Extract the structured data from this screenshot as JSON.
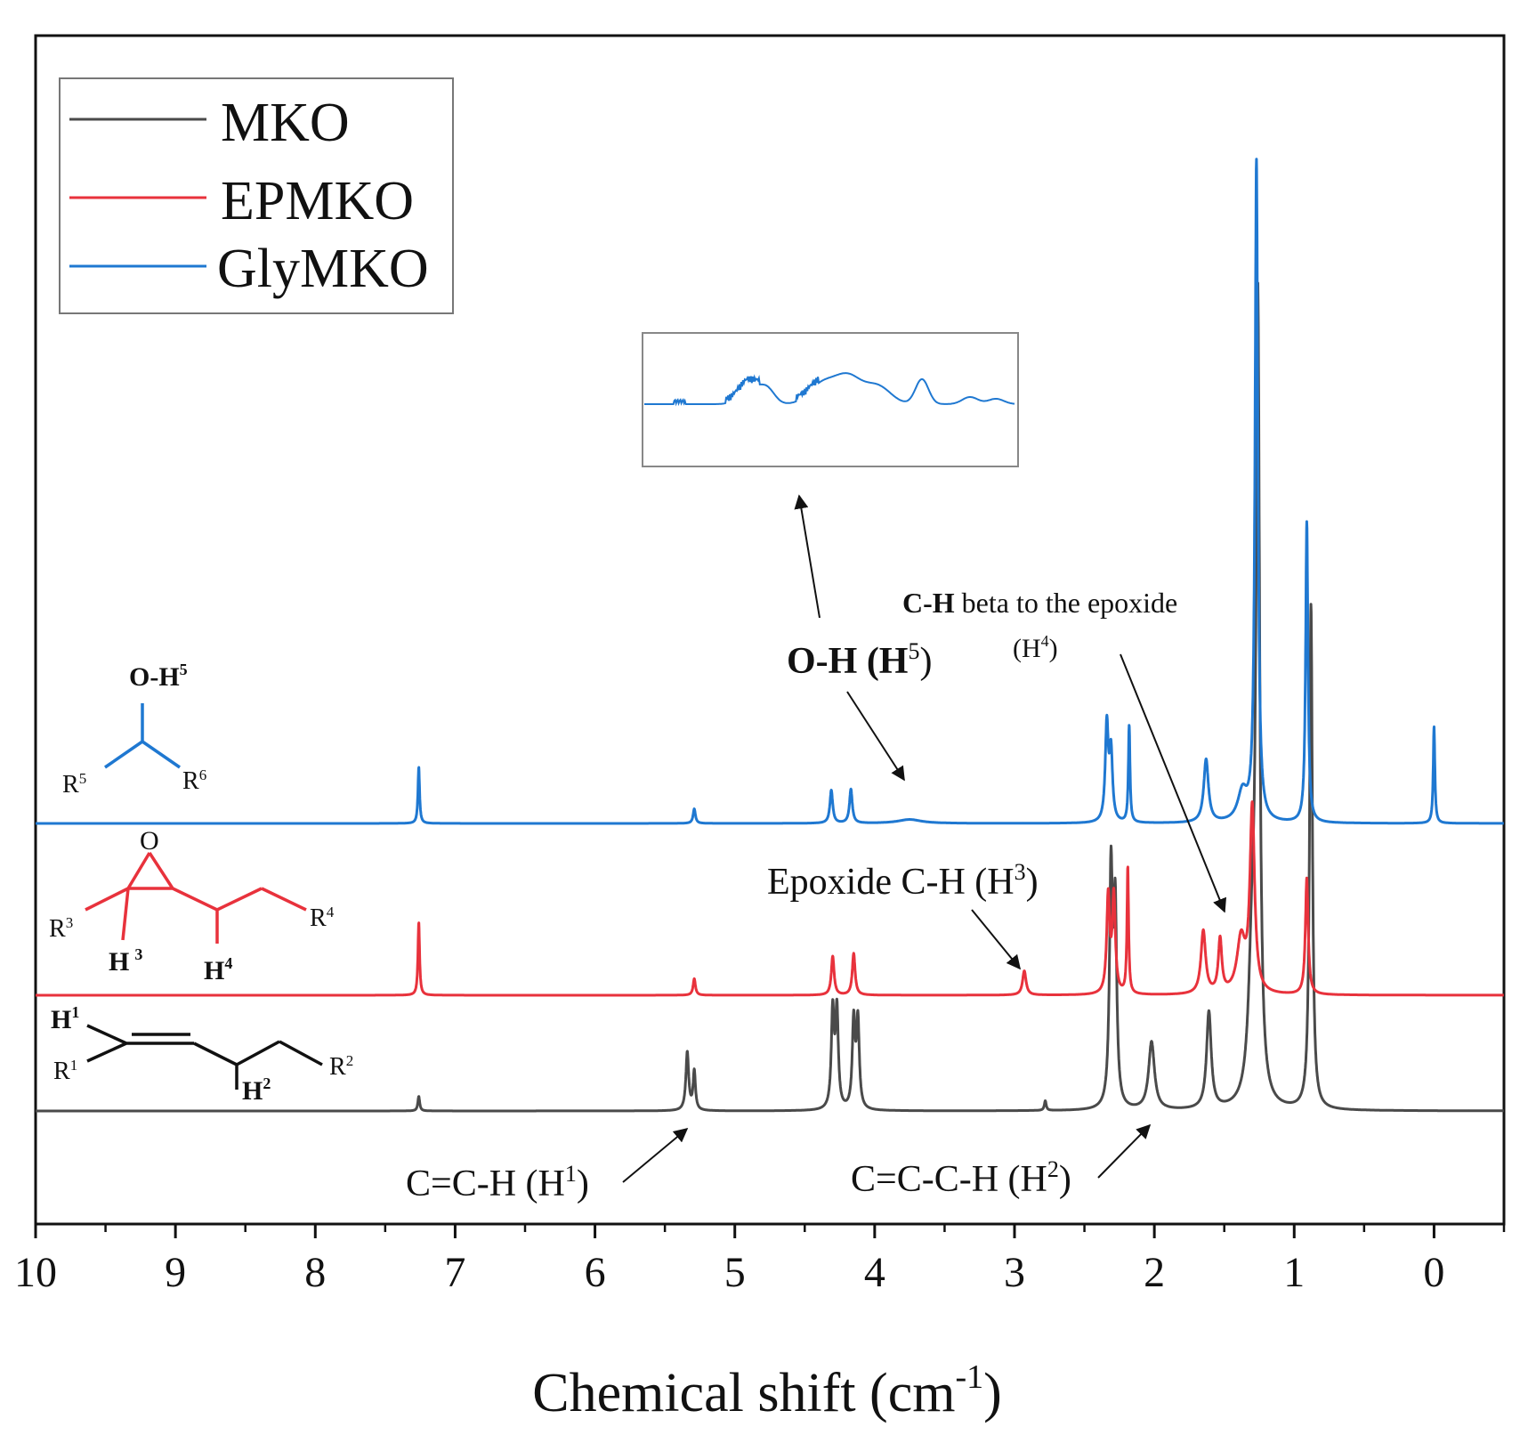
{
  "chart_data": {
    "type": "line",
    "title": "",
    "xlabel": "Chemical shift (cm",
    "xlabel_sup": "-1",
    "xlabel_close": ")",
    "ylabel": "",
    "xlim": [
      10,
      -0.5
    ],
    "x_ticks": [
      "10",
      "9",
      "8",
      "7",
      "6",
      "5",
      "4",
      "3",
      "2",
      "1",
      "0"
    ],
    "x_tick_values": [
      10,
      9,
      8,
      7,
      6,
      5,
      4,
      3,
      2,
      1,
      0
    ],
    "legend": [
      {
        "name": "MKO",
        "color": "#4a4a4a"
      },
      {
        "name": "EPMKO",
        "color": "#e8323c"
      },
      {
        "name": "GlyMKO",
        "color": "#1f78d1"
      }
    ],
    "legend_position": "top-left",
    "series": [
      {
        "name": "MKO",
        "color": "#4a4a4a",
        "peaks": [
          {
            "x": 7.26,
            "h": 0.015,
            "w": 0.008
          },
          {
            "x": 5.34,
            "h": 0.06,
            "w": 0.012
          },
          {
            "x": 5.29,
            "h": 0.04,
            "w": 0.01
          },
          {
            "x": 4.3,
            "h": 0.1,
            "w": 0.012
          },
          {
            "x": 4.27,
            "h": 0.1,
            "w": 0.012
          },
          {
            "x": 4.15,
            "h": 0.09,
            "w": 0.012
          },
          {
            "x": 4.12,
            "h": 0.09,
            "w": 0.012
          },
          {
            "x": 2.78,
            "h": 0.01,
            "w": 0.008
          },
          {
            "x": 2.31,
            "h": 0.24,
            "w": 0.013
          },
          {
            "x": 2.28,
            "h": 0.2,
            "w": 0.013
          },
          {
            "x": 2.02,
            "h": 0.07,
            "w": 0.025
          },
          {
            "x": 1.61,
            "h": 0.1,
            "w": 0.02
          },
          {
            "x": 1.3,
            "h": 0.15,
            "w": 0.03
          },
          {
            "x": 1.26,
            "h": 0.8,
            "w": 0.015
          },
          {
            "x": 0.88,
            "h": 0.52,
            "w": 0.012
          }
        ]
      },
      {
        "name": "EPMKO",
        "color": "#e8323c",
        "peaks": [
          {
            "x": 7.26,
            "h": 0.075,
            "w": 0.007
          },
          {
            "x": 5.29,
            "h": 0.017,
            "w": 0.01
          },
          {
            "x": 4.3,
            "h": 0.04,
            "w": 0.012
          },
          {
            "x": 4.15,
            "h": 0.043,
            "w": 0.012
          },
          {
            "x": 2.93,
            "h": 0.025,
            "w": 0.015
          },
          {
            "x": 2.33,
            "h": 0.1,
            "w": 0.013
          },
          {
            "x": 2.29,
            "h": 0.1,
            "w": 0.013
          },
          {
            "x": 2.19,
            "h": 0.13,
            "w": 0.007
          },
          {
            "x": 1.65,
            "h": 0.065,
            "w": 0.02
          },
          {
            "x": 1.53,
            "h": 0.055,
            "w": 0.015
          },
          {
            "x": 1.38,
            "h": 0.055,
            "w": 0.035
          },
          {
            "x": 1.3,
            "h": 0.19,
            "w": 0.02
          },
          {
            "x": 0.91,
            "h": 0.12,
            "w": 0.012
          }
        ]
      },
      {
        "name": "GlyMKO",
        "color": "#1f78d1",
        "peaks": [
          {
            "x": 7.26,
            "h": 0.058,
            "w": 0.007
          },
          {
            "x": 5.29,
            "h": 0.015,
            "w": 0.01
          },
          {
            "x": 4.31,
            "h": 0.034,
            "w": 0.012
          },
          {
            "x": 4.17,
            "h": 0.035,
            "w": 0.012
          },
          {
            "x": 3.75,
            "h": 0.004,
            "w": 0.1
          },
          {
            "x": 2.34,
            "h": 0.1,
            "w": 0.013
          },
          {
            "x": 2.31,
            "h": 0.07,
            "w": 0.013
          },
          {
            "x": 2.18,
            "h": 0.1,
            "w": 0.007
          },
          {
            "x": 1.63,
            "h": 0.065,
            "w": 0.02
          },
          {
            "x": 1.37,
            "h": 0.03,
            "w": 0.04
          },
          {
            "x": 1.27,
            "h": 0.68,
            "w": 0.012
          },
          {
            "x": 0.91,
            "h": 0.31,
            "w": 0.01
          },
          {
            "x": 0.0,
            "h": 0.1,
            "w": 0.007
          }
        ]
      }
    ],
    "annotations": {
      "oh": {
        "main": "O-H (H",
        "sup": "5",
        "close": ")"
      },
      "beta_line1": {
        "bold": "C-H",
        "rest": " beta to the epoxide"
      },
      "beta_line2": {
        "main": "(H",
        "sup": "4",
        "close": ")"
      },
      "epoxide": {
        "main": "Epoxide C-H (H",
        "sup": "3",
        "close": ")"
      },
      "cch": {
        "main": "C=C-H (H",
        "sup": "1",
        "close": ")"
      },
      "ccch": {
        "main": "C=C-C-H (H",
        "sup": "2",
        "close": ")"
      }
    },
    "structures": {
      "s1": {
        "top": "O-H",
        "top_sup": "5",
        "r_left": "R",
        "r_left_sup": "5",
        "r_right": "R",
        "r_right_sup": "6"
      },
      "s2": {
        "o": "O",
        "r3": "R",
        "r3_sup": "3",
        "r4": "R",
        "r4_sup": "4",
        "h3": "H",
        "h3_sup": "3",
        "h4": "H",
        "h4_sup": "4"
      },
      "s3": {
        "h1": "H",
        "h1_sup": "1",
        "r1": "R",
        "r1_sup": "1",
        "r2": "R",
        "r2_sup": "2",
        "h2": "H",
        "h2_sup": "2"
      }
    }
  }
}
